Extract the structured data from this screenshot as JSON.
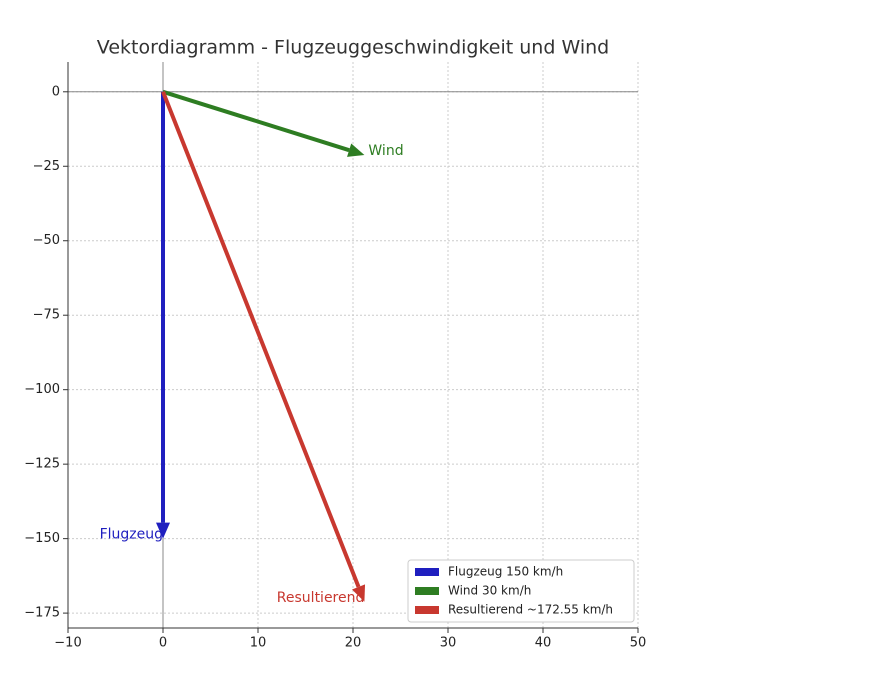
{
  "chart_data": {
    "type": "quiver",
    "title": "Vektordiagramm - Flugzeuggeschwindigkeit und Wind",
    "series": [
      {
        "name": "Flugzeug 150 km/h",
        "label": "Flugzeug",
        "color": "#1f1fbf",
        "u": 0,
        "v": -150
      },
      {
        "name": "Wind 30 km/h",
        "label": "Wind",
        "color": "#2e7d22",
        "u": 21.2,
        "v": -21.2
      },
      {
        "name": "Resultierend ~172.55 km/h",
        "label": "Resultierend",
        "color": "#c8382f",
        "u": 21.2,
        "v": -171.2
      }
    ],
    "xlim": [
      -10,
      50
    ],
    "xticks": [
      {
        "value": -10,
        "label": "−10"
      },
      0,
      10,
      20,
      30,
      40,
      50
    ],
    "ylim": [
      -180,
      10
    ],
    "yticks": [
      0,
      {
        "value": -25,
        "label": "−25"
      },
      {
        "value": -50,
        "label": "−50"
      },
      {
        "value": -75,
        "label": "−75"
      },
      {
        "value": -100,
        "label": "−100"
      },
      {
        "value": -125,
        "label": "−125"
      },
      {
        "value": -150,
        "label": "−150"
      },
      {
        "value": -175,
        "label": "−175"
      }
    ],
    "grid": true,
    "legend": "lower right"
  }
}
